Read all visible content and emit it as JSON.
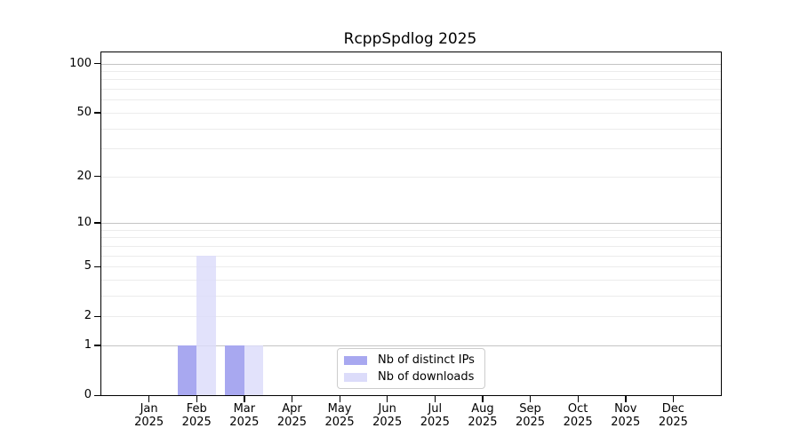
{
  "title": "RcppSpdlog 2025",
  "chart_data": {
    "type": "bar",
    "title": "RcppSpdlog 2025",
    "categories": [
      "Jan 2025",
      "Feb 2025",
      "Mar 2025",
      "Apr 2025",
      "May 2025",
      "Jun 2025",
      "Jul 2025",
      "Aug 2025",
      "Sep 2025",
      "Oct 2025",
      "Nov 2025",
      "Dec 2025"
    ],
    "x_tick_labels": [
      {
        "month": "Jan",
        "year": "2025"
      },
      {
        "month": "Feb",
        "year": "2025"
      },
      {
        "month": "Mar",
        "year": "2025"
      },
      {
        "month": "Apr",
        "year": "2025"
      },
      {
        "month": "May",
        "year": "2025"
      },
      {
        "month": "Jun",
        "year": "2025"
      },
      {
        "month": "Jul",
        "year": "2025"
      },
      {
        "month": "Aug",
        "year": "2025"
      },
      {
        "month": "Sep",
        "year": "2025"
      },
      {
        "month": "Oct",
        "year": "2025"
      },
      {
        "month": "Nov",
        "year": "2025"
      },
      {
        "month": "Dec",
        "year": "2025"
      }
    ],
    "series": [
      {
        "name": "Nb of distinct IPs",
        "color": "#a8a8f0",
        "values": [
          0,
          1,
          1,
          0,
          0,
          0,
          0,
          0,
          0,
          0,
          0,
          0
        ]
      },
      {
        "name": "Nb of downloads",
        "color": "#dcdcfa",
        "values": [
          0,
          6,
          1,
          0,
          0,
          0,
          0,
          0,
          0,
          0,
          0,
          0
        ]
      }
    ],
    "y_axis": {
      "scale": "log1p",
      "max": 117,
      "ticks": [
        0,
        1,
        2,
        5,
        10,
        20,
        50,
        100
      ],
      "major_gridlines": [
        1,
        10,
        100
      ],
      "minor_gridlines": [
        2,
        3,
        4,
        5,
        6,
        7,
        8,
        9,
        20,
        30,
        40,
        50,
        60,
        70,
        80,
        90
      ]
    },
    "xlabel": "",
    "ylabel": "",
    "grid": true,
    "legend_position": "bottom-center"
  },
  "colors": {
    "bar_distinct_ips": "#a8a8f0",
    "bar_downloads": "#dcdcfa",
    "grid_major": "#c4c4c4",
    "grid_minor": "#ececec",
    "axis": "#000000",
    "legend_border": "#cccccc",
    "background": "#ffffff"
  }
}
